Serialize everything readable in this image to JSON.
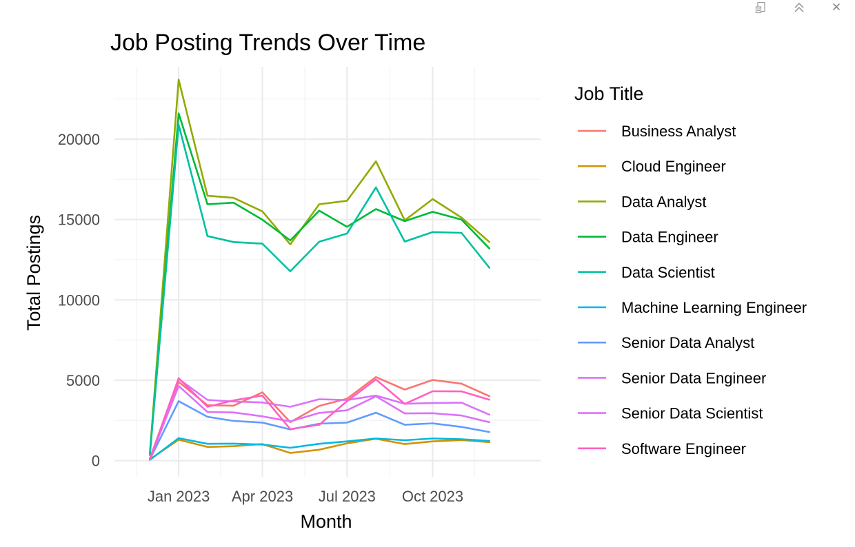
{
  "toolbar": {
    "icons": [
      "export-icon",
      "collapse-icon",
      "close-icon"
    ],
    "collapse_glyph": "≈",
    "close_glyph": "✕"
  },
  "chart_data": {
    "type": "line",
    "title": "Job Posting Trends Over Time",
    "xlabel": "Month",
    "ylabel": "Total Postings",
    "ylim": [
      -1000,
      24500
    ],
    "y_ticks": [
      0,
      5000,
      10000,
      15000,
      20000
    ],
    "x_ticks": [
      {
        "date": "2023-01-01",
        "label": "Jan 2023"
      },
      {
        "date": "2023-04-01",
        "label": "Apr 2023"
      },
      {
        "date": "2023-07-01",
        "label": "Jul 2023"
      },
      {
        "date": "2023-10-01",
        "label": "Oct 2023"
      }
    ],
    "xlim": [
      "2022-10-24",
      "2024-01-25"
    ],
    "x": [
      "2022-12-01",
      "2023-01-01",
      "2023-02-01",
      "2023-03-01",
      "2023-04-01",
      "2023-05-01",
      "2023-06-01",
      "2023-07-01",
      "2023-08-01",
      "2023-09-01",
      "2023-10-01",
      "2023-11-01",
      "2023-12-01"
    ],
    "grid": true,
    "legend_title": "Job Title",
    "legend_position": "right",
    "series": [
      {
        "name": "Business Analyst",
        "color": "#F8766D",
        "values": [
          130,
          4900,
          3450,
          3420,
          4250,
          2400,
          3400,
          3850,
          5200,
          4420,
          5020,
          4790,
          4010
        ]
      },
      {
        "name": "Cloud Engineer",
        "color": "#D39200",
        "values": [
          80,
          1300,
          850,
          900,
          1030,
          480,
          680,
          1080,
          1360,
          1030,
          1200,
          1280,
          1150
        ]
      },
      {
        "name": "Data Analyst",
        "color": "#93AA00",
        "values": [
          420,
          23700,
          16480,
          16350,
          15510,
          13450,
          15950,
          16170,
          18620,
          14950,
          16270,
          15120,
          13600
        ]
      },
      {
        "name": "Data Engineer",
        "color": "#00BA38",
        "values": [
          380,
          21600,
          15950,
          16050,
          14990,
          13700,
          15550,
          14550,
          15650,
          14900,
          15480,
          15000,
          13200
        ]
      },
      {
        "name": "Data Scientist",
        "color": "#00C19F",
        "values": [
          350,
          20900,
          13970,
          13600,
          13500,
          11780,
          13620,
          14130,
          17000,
          13630,
          14220,
          14170,
          12000
        ]
      },
      {
        "name": "Machine Learning Engineer",
        "color": "#00B9E3",
        "values": [
          50,
          1400,
          1050,
          1060,
          1000,
          800,
          1050,
          1200,
          1380,
          1270,
          1380,
          1330,
          1230
        ]
      },
      {
        "name": "Senior Data Analyst",
        "color": "#619CFF",
        "values": [
          70,
          3700,
          2730,
          2470,
          2370,
          1940,
          2300,
          2370,
          2980,
          2230,
          2320,
          2100,
          1780
        ]
      },
      {
        "name": "Senior Data Engineer",
        "color": "#DB72FB",
        "values": [
          100,
          5080,
          3780,
          3680,
          3620,
          3350,
          3820,
          3770,
          4050,
          3540,
          3580,
          3610,
          2860
        ]
      },
      {
        "name": "Senior Data Scientist",
        "color": "#DB72FB",
        "values": [
          90,
          4650,
          3030,
          3000,
          2760,
          2440,
          2970,
          3130,
          4000,
          2940,
          2950,
          2810,
          2390
        ]
      },
      {
        "name": "Software Engineer",
        "color": "#FF61C3",
        "values": [
          110,
          5130,
          3350,
          3750,
          4050,
          1960,
          2230,
          3700,
          5050,
          3530,
          4320,
          4310,
          3790
        ]
      }
    ]
  }
}
